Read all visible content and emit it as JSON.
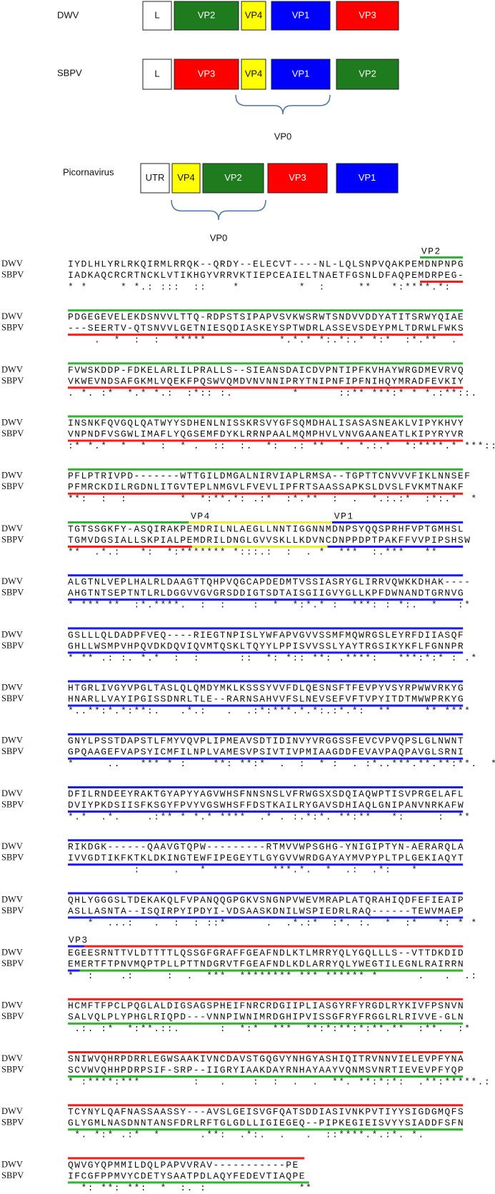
{
  "genome_maps": [
    {
      "name": "DWV",
      "segments": [
        {
          "label": "L",
          "color": "#ffffff"
        },
        {
          "label": "VP2",
          "color": "#1e7b1e"
        },
        {
          "label": "VP4",
          "color": "#ffff00"
        },
        {
          "label": "VP1",
          "color": "#0000ff"
        },
        {
          "label": "VP3",
          "color": "#ff0000"
        }
      ]
    },
    {
      "name": "SBPV",
      "segments": [
        {
          "label": "L",
          "color": "#ffffff"
        },
        {
          "label": "VP3",
          "color": "#ff0000"
        },
        {
          "label": "VP4",
          "color": "#ffff00"
        },
        {
          "label": "VP1",
          "color": "#0000ff"
        },
        {
          "label": "VP2",
          "color": "#1e7b1e"
        }
      ],
      "bracket_label": "VP0"
    },
    {
      "name": "Picornavirus",
      "segments": [
        {
          "label": "UTR",
          "color": "#ffffff"
        },
        {
          "label": "VP4",
          "color": "#ffff00"
        },
        {
          "label": "VP2",
          "color": "#1e7b1e"
        },
        {
          "label": "VP3",
          "color": "#ff0000"
        },
        {
          "label": "VP1",
          "color": "#0000ff"
        }
      ],
      "bracket_label": "VP0"
    }
  ],
  "alignment": {
    "blocks": [
      {
        "labels": [
          "VP2"
        ],
        "rows": [
          {
            "name": "DWV",
            "seq": "IYDLHLYRLRKQIRMLRRQK--QRDY--ELECVT----NL-LQLSNPVQAKPEMDNPNPG"
          },
          {
            "name": "SBPV",
            "seq": "IADKAQCRCRTNCKLVTIKHGYVRRVKTIEPCEAIELTNAETFGSNLDFAQPEMDRPEG-"
          }
        ],
        "consensus": "* *     * *.: :::  ::    *         *  :     **   *:****.*:"
      },
      {
        "rows": [
          {
            "name": "DWV",
            "seq": "PDGEGEVELEKDSNVVLTTQ-RDPSTSIPAPVSVKWSRWTSNDVVDDYATITSRWYQIAE"
          },
          {
            "name": "SBPV",
            "seq": "---SEERTV-QTSNVVLGETNIESQDIASKEYSPTWDRLASSEVSDEYPMLTDRWLFWKS"
          }
        ],
        "consensus": "    .  *  :  :  *****           *.*.* *:.*:.* *:*  :*.**  ."
      },
      {
        "rows": [
          {
            "name": "DWV",
            "seq": "FVWSKDDP-FDKELARLILPRALLS--SIEANSDAICDVPNTIPFKVHAYWRGDMEVRVQ"
          },
          {
            "name": "SBPV",
            "seq": "VKWEVNDSAFGKMLVQEKFPQSWVQMDVNVNNIPRYTNIPNFIPFNIHQYMRADFEVKIY"
          }
        ],
        "consensus": ". *. :*  *.* *.:  :*:: :.         *      ::** ***:* * *.:**::."
      },
      {
        "rows": [
          {
            "name": "DWV",
            "seq": "INSNKFQVGQLQATWYYSDHENLNISSKRSVYGFSQMDHALISASASNEAKLVIPYKHVY"
          },
          {
            "name": "SBPV",
            "seq": "VNPNDFVSGWLIMAFLYQGSEMFDYKLRRNPAALMQMPHVLVNVGAANEATLKIPYRYVR"
          }
        ],
        "consensus": ":* *.*  *  *  :  * .  ::  :.  *:  .: **  *. *.:.*  *:****.* ***::*"
      },
      {
        "rows": [
          {
            "name": "DWV",
            "seq": "PFLPTRIVPD-------WTTGILDMGALNIRVIAPLRMSA--TGPTTCNVVVFIKLNNSEF"
          },
          {
            "name": "SBPV",
            "seq": "PFMRCKDILRGDNLITGVTEPLNMGVLFVEVLIPFRTSAASSAPKSLDVSLFVKMTNAKF"
          }
        ],
        "consensus": "**:  :  :        *  *:**.*: .:*  :*.**  :  .  *.:.:*  :*:.*  *"
      },
      {
        "labels": [
          "VP4",
          "VP1"
        ],
        "rows": [
          {
            "name": "DWV",
            "seq": "TGTSSGKFY-ASQIRAKPEMDRILNLAEGLLNNTIGGNNMDNPSYQQSPRHFVPTGMHSL"
          },
          {
            "name": "SBPV",
            "seq": "TGMVDGSIALLSKPIALPEMDRILDNGLGVVSKLLKDVNCDNPPDPTPAKFFVVPIPSHSW"
          }
        ],
        "consensus": "**  .*.:   *:  *:******* *:::.:  :  . *  ***  :.***   **"
      },
      {
        "rows": [
          {
            "name": "DWV",
            "seq": "ALGTNLVEPLHALRLDAAGTTQHPVQGCAPDEDMTVSSIASRYGLIRRVQWKKDHAK----"
          },
          {
            "name": "SBPV",
            "seq": "AHGTNTSEPTNTLRLDGGVVGVGRSDDIGTSDTAISGIIGVYGLLKPFDWNANDTGRNVG"
          }
        ],
        "consensus": "* *** **  :*.****.  :  :    :  *  *:*.* :  ***: : *:.  *   :*"
      },
      {
        "rows": [
          {
            "name": "DWV",
            "seq": "GSLLLQLDADPFVEQ----RIEGTNPISLYWFAPVGVVSSMFMQWRGSLEYRFDIIASQF"
          },
          {
            "name": "SBPV",
            "seq": "GHLLWSMPVHPQVDKDQVIQVMTQSKLTQYYLPPISVVSSLYAYTRGSIKYKFLFGNNPR"
          }
        ],
        "consensus": "* ** .: :. *.*  :  :      ::  *: *:: **: .****:   ***:*:* : .*"
      },
      {
        "rows": [
          {
            "name": "DWV",
            "seq": "HTGRLIVGYVPGLTASLQLQMDYMKLKSSSYVVFDLQESNSFTFEVPYVSYRPWWVRKYG"
          },
          {
            "name": "SBPV",
            "seq": "HNARLLVAYIPGISSDNRLTLE--RARNSAHVVFSLNEVSEFVFTVPYITDTMWWPRKYG"
          }
        ],
        "consensus": "*..**:*.*:**:.   .*.:   .  .:*:***.*.*:.:*.*:  **     ** ****"
      },
      {
        "rows": [
          {
            "name": "DWV",
            "seq": "GNYLPSSTDAPSTLFMYVQVPLIPMEAVSDTIDINVYVRGGSSFEVCVPVQPSLGLNWNT"
          },
          {
            "name": "SBPV",
            "seq": "GPQAAGEFVAPSYICMFILNPLVAMESVPSIVTIVPMIAAGDDFEVAVPAQPAVGLSRNI"
          }
        ],
        "consensus": "*     ..   *** * :    **: **:*  .  :  * :  . :*..***.**.**:**.  *"
      },
      {
        "rows": [
          {
            "name": "DWV",
            "seq": "DFILRNDEEYRAKTGYAPYYAGVWHSFNNSNSLVFRWGSXSDQIAQWPTISVPRGELAFL"
          },
          {
            "name": "SBPV",
            "seq": "DVIYPKDSIISFKSGYFPVYVGSWHSFFDSTKAILRYGAVSDHIAQLGNIPANVNRKAFW"
          }
        ],
        "consensus": "*.*  .*.    .:** * *.* ****  .* . :.*:*. **:**   *:     :  **"
      },
      {
        "rows": [
          {
            "name": "DWV",
            "seq": "RIKDGK------QAAVGTQPW---------RTMVVWPSGHG-YNIGIPTYN-AERARQLA"
          },
          {
            "name": "SBPV",
            "seq": "IVVGDTIKFKTKLDKINGTEWFIPEGEYTLGYGVVWRDGAYAYMVPYPLTPLGEKIAQYT"
          }
        ],
        "consensus": "          :     .   *          ***.*.  *  .:  .*:   *"
      },
      {
        "rows": [
          {
            "name": "DWV",
            "seq": "QHLYGGGSLTDEKAKQLFVPANQQGPGKVSNGNPVWEVMRAPLATQRAHIQDFEFIEAIP"
          },
          {
            "name": "SBPV",
            "seq": "ASLLASNTA--ISQIRPYIPDYI-VDSAASKDNILWSPIEDRLRAQ------TEWVMAEP"
          }
        ],
        "consensus": "   *  ...:   .  :  : ::*      .  .*.:*  :*. :.  *  :*   *: * *"
      },
      {
        "labels": [
          "VP3"
        ],
        "rows": [
          {
            "name": "DWV",
            "seq": "EGEESRNTTVLDTTTTLQSSGFGRAFFGEAFNDLKTLMRRYQLYGQLLLS--VTTDKDID"
          },
          {
            "name": "SBPV",
            "seq": "EMERTFTPNVMQPTPLLPTTNDGRVTFGEAFNDLKDLARRYQLYWEGTILEGNLRAIRRN"
          }
        ],
        "consensus": "*  :    .:     :  .  ***  ******** *** ****** *      .   .  .:"
      },
      {
        "rows": [
          {
            "name": "DWV",
            "seq": "HCMFTFPCLPQGLALDIGSAGSPHEIFNRCRDGIIPLIASGYRFYRGDLRYKIVFPSNVN"
          },
          {
            "name": "SBPV",
            "seq": "SALVQLPLYPHGLRIQPD---VNNPIWNIMRDGHIPVISSGFRYFRGGLRLRIVVE-GLN"
          }
        ],
        "consensus": " .:. :*  *:**.::.      :  *:*  ***  **:*:**:*:**.**  :**.  :*"
      },
      {
        "rows": [
          {
            "name": "DWV",
            "seq": "SNIWVQHRPDRRLEGWSAAKIVNCDAVSTGQGVYNHGYASHIQITRVNNVIELEVPFYNA"
          },
          {
            "name": "SBPV",
            "seq": "SCVWVQHHPDRPSIF-SRP--IIGRYIAAKDAYRNHAYAAYVQNMSVNRTIEVEVPFYQP"
          }
        ],
        "consensus": "* :****:***        :   .    :  :  .  .  **. **:*:*:  .**:*****.:"
      },
      {
        "rows": [
          {
            "name": "DWV",
            "seq": "TCYNYLQAFNASSAASSY---AVSLGEISVGFQATSDDIASIVNKPVTIYYSIGDGMQFS"
          },
          {
            "name": "SBPV",
            "seq": "GLYGMLNASDNNTANSFDRLRFTGLGDLLIGIEGEQ--PIPKEGIEISVYYSIADDFSFN"
          }
        ],
        "consensus": " *. *:* .:*  *      .**:  .*:.  .   .  ::****.*.:*. *."
      },
      {
        "rows": [
          {
            "name": "DWV",
            "seq": "QWVGYQPMMILDQLPAPVVRAV-----------PE"
          },
          {
            "name": "SBPV",
            "seq": "IFCGFPPMVYCDETYSAATPDLAQYFEDEVTIAQPE"
          }
        ],
        "consensus": "  *: **: **:  *  :. :              **"
      }
    ]
  }
}
